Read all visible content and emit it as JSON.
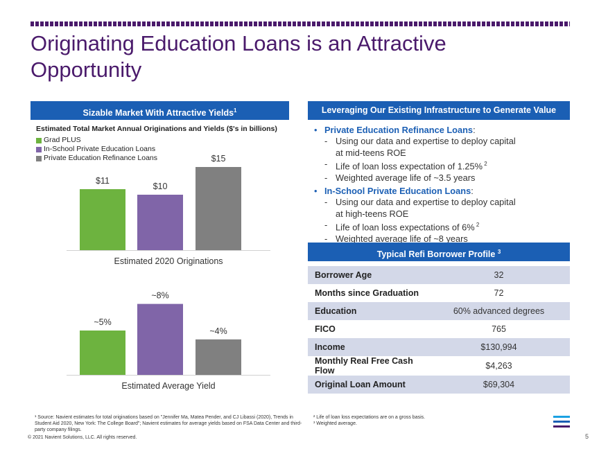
{
  "title": "Originating Education Loans is an Attractive Opportunity",
  "left_panel": {
    "header": "Sizable Market With Attractive Yields",
    "header_sup": "1",
    "subtitle": "Estimated Total Market Annual Originations and Yields ($'s in billions)",
    "legend": [
      {
        "label": "Grad PLUS",
        "color": "#6db33f"
      },
      {
        "label": "In-School Private Education Loans",
        "color": "#8065a8"
      },
      {
        "label": "Private Education Refinance Loans",
        "color": "#808080"
      }
    ]
  },
  "chart_data": [
    {
      "type": "bar",
      "categories": [
        "Grad PLUS",
        "In-School Private Education Loans",
        "Private Education Refinance Loans"
      ],
      "values": [
        11,
        10,
        15
      ],
      "data_labels": [
        "$11",
        "$10",
        "$15"
      ],
      "xlabel": "Estimated 2020 Originations",
      "unit": "$ billions",
      "colors": [
        "#6db33f",
        "#8065a8",
        "#808080"
      ],
      "ylim": [
        0,
        16
      ]
    },
    {
      "type": "bar",
      "categories": [
        "Grad PLUS",
        "In-School Private Education Loans",
        "Private Education Refinance Loans"
      ],
      "values": [
        5,
        8,
        4
      ],
      "data_labels": [
        "~5%",
        "~8%",
        "~4%"
      ],
      "xlabel": "Estimated Average Yield",
      "unit": "%",
      "colors": [
        "#6db33f",
        "#8065a8",
        "#808080"
      ],
      "ylim": [
        0,
        10
      ]
    }
  ],
  "right_panel": {
    "header": "Leveraging Our Existing Infrastructure to Generate Value",
    "bullets": [
      {
        "head": "Private Education Refinance Loans",
        "subs": [
          {
            "lines": [
              "Using our data and expertise to deploy capital",
              "at mid-teens ROE"
            ],
            "sup": ""
          },
          {
            "lines": [
              "Life of loan loss expectation of 1.25%"
            ],
            "sup": "2"
          },
          {
            "lines": [
              "Weighted average life of ~3.5 years"
            ],
            "sup": ""
          }
        ]
      },
      {
        "head": "In-School Private Education Loans",
        "subs": [
          {
            "lines": [
              "Using our data and expertise to deploy capital",
              "at high-teens ROE"
            ],
            "sup": ""
          },
          {
            "lines": [
              "Life of loan loss expectations of 6%"
            ],
            "sup": "2"
          },
          {
            "lines": [
              "Weighted average life of ~8 years"
            ],
            "sup": ""
          }
        ]
      }
    ]
  },
  "profile": {
    "header": "Typical Refi Borrower Profile",
    "header_sup": "3",
    "rows": [
      {
        "label": "Borrower Age",
        "value": "32"
      },
      {
        "label": "Months since Graduation",
        "value": "72"
      },
      {
        "label": "Education",
        "value": "60% advanced degrees"
      },
      {
        "label": "FICO",
        "value": "765"
      },
      {
        "label": "Income",
        "value": "$130,994"
      },
      {
        "label": "Monthly Real Free Cash Flow",
        "value": "$4,263"
      },
      {
        "label": "Original Loan Amount",
        "value": "$69,304"
      }
    ]
  },
  "footnotes": {
    "note1": "¹ Source: Navient estimates for total originations based on \"Jennifer Ma, Matea Pender, and CJ Libassi (2020), Trends in Student Aid 2020, New York: The College Board\"; Navient estimates for average yields based on FSA Data Center and third-party company filings.",
    "note2": "² Life of loan loss expectations are on a gross basis.",
    "note3": "³ Weighted average.",
    "copyright": "© 2021 Navient Solutions, LLC. All rights reserved."
  },
  "page_number": "5",
  "logo_colors": [
    "#1ba1e2",
    "#1b5fb4",
    "#4a1a6b"
  ]
}
